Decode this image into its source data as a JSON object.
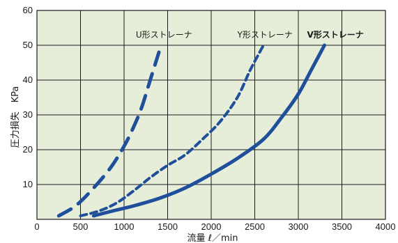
{
  "chart_data": {
    "type": "line",
    "xlabel": "流量 ℓ／min",
    "ylabel": "圧力損失　KPa",
    "xlim": [
      0,
      4000
    ],
    "ylim": [
      0,
      60
    ],
    "x_ticks": [
      0,
      500,
      1000,
      1500,
      2000,
      2500,
      3000,
      3500,
      4000
    ],
    "y_ticks": [
      10,
      20,
      30,
      40,
      50,
      60
    ],
    "grid": true,
    "colors": {
      "plot_background": "#e6eed9",
      "grid": "#1a1a1a",
      "series": "#1f4f9a"
    },
    "series": [
      {
        "name": "U形ストレーナ",
        "dash": "long-dash",
        "label_at": [
          1135,
          53
        ],
        "points": [
          [
            250,
            1
          ],
          [
            450,
            4
          ],
          [
            650,
            9
          ],
          [
            850,
            15
          ],
          [
            1000,
            21
          ],
          [
            1100,
            26
          ],
          [
            1200,
            32
          ],
          [
            1300,
            40
          ],
          [
            1400,
            48
          ]
        ]
      },
      {
        "name": "Y形ストレーナ",
        "dash": "short-dash",
        "label_at": [
          2300,
          53
        ],
        "points": [
          [
            500,
            1
          ],
          [
            700,
            2.3
          ],
          [
            900,
            4.5
          ],
          [
            1100,
            8
          ],
          [
            1300,
            12
          ],
          [
            1500,
            15.5
          ],
          [
            1700,
            18.5
          ],
          [
            1900,
            23
          ],
          [
            2100,
            28
          ],
          [
            2300,
            35
          ],
          [
            2450,
            43
          ],
          [
            2600,
            50
          ]
        ]
      },
      {
        "name": "V形ストレーナ",
        "dash": "solid",
        "label_at": [
          3100,
          53
        ],
        "points": [
          [
            650,
            1
          ],
          [
            900,
            2.6
          ],
          [
            1100,
            3.8
          ],
          [
            1400,
            6
          ],
          [
            1700,
            9
          ],
          [
            2000,
            13
          ],
          [
            2300,
            17.5
          ],
          [
            2600,
            23
          ],
          [
            2800,
            29
          ],
          [
            3000,
            36
          ],
          [
            3150,
            43
          ],
          [
            3300,
            50
          ]
        ]
      }
    ]
  }
}
